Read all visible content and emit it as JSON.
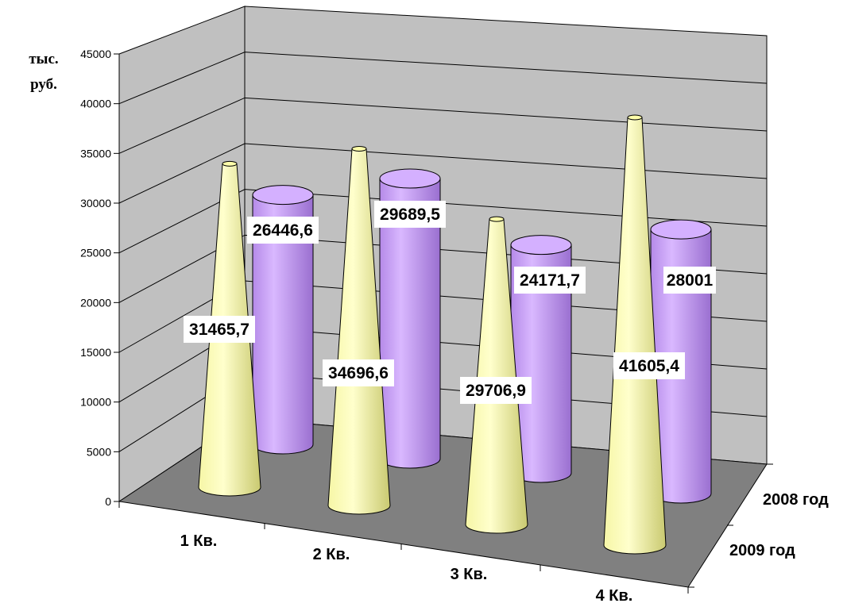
{
  "chart_data": {
    "type": "bar",
    "categories": [
      "1 Кв.",
      "2 Кв.",
      "3 Кв.",
      "4 Кв."
    ],
    "series": [
      {
        "name": "2009 год",
        "shape": "cone",
        "color": "#FFFF99",
        "values": [
          31465.7,
          34696.6,
          29706.9,
          41605.4
        ],
        "labels": [
          "31465,7",
          "34696,6",
          "29706,9",
          "41605,4"
        ]
      },
      {
        "name": "2008 год",
        "shape": "cylinder",
        "color": "#CC99FF",
        "values": [
          26446.6,
          29689.5,
          24171.7,
          28001
        ],
        "labels": [
          "26446,6",
          "29689,5",
          "24171,7",
          "28001"
        ]
      }
    ],
    "y_ticks": [
      "0",
      "5000",
      "10000",
      "15000",
      "20000",
      "25000",
      "30000",
      "35000",
      "40000",
      "45000"
    ],
    "ylim": [
      0,
      45000
    ],
    "y_unit": [
      "тыс.",
      "руб."
    ],
    "grid": true,
    "floor_color": "#808080",
    "wall_color": "#C0C0C0"
  }
}
